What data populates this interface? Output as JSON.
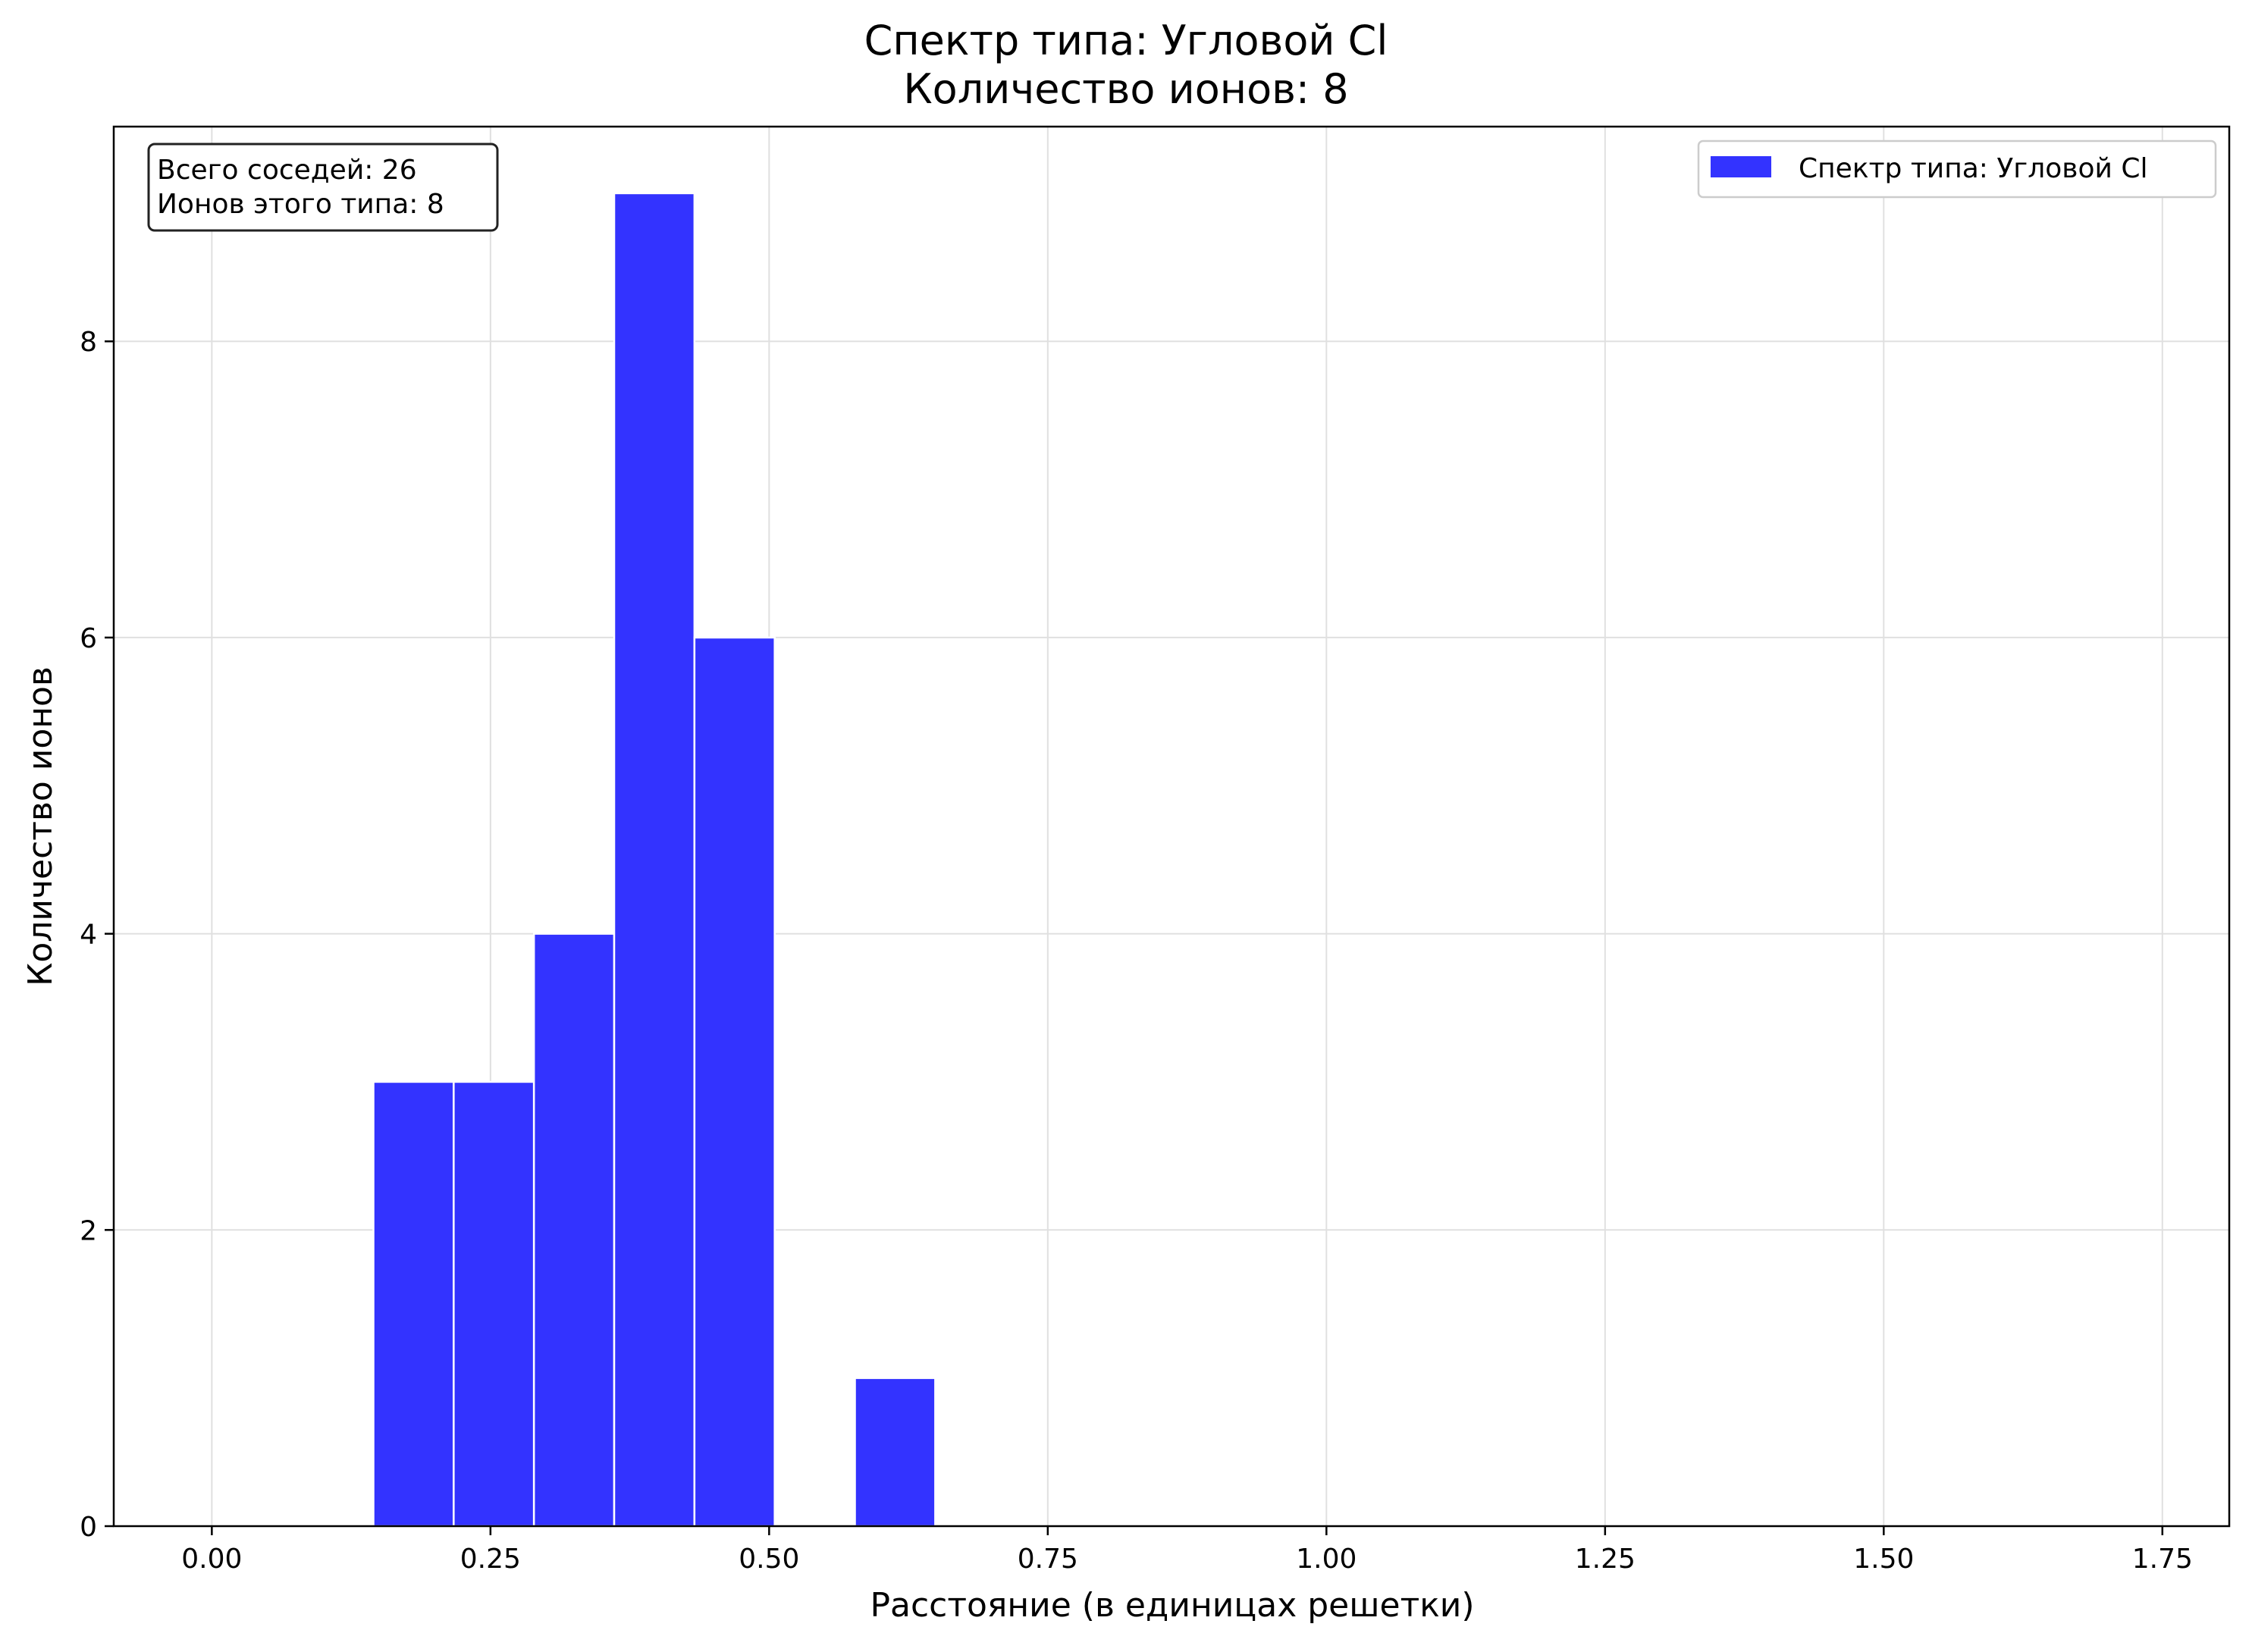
{
  "chart_data": {
    "type": "bar",
    "title": "Спектр типа: Угловой Cl",
    "subtitle": "Количество ионов: 8",
    "xlabel": "Расстояние (в единицах решетки)",
    "ylabel": "Количество ионов",
    "xlim": [
      -0.088,
      1.81
    ],
    "ylim": [
      0,
      9.45
    ],
    "x_ticks": [
      "0.00",
      "0.25",
      "0.50",
      "0.75",
      "1.00",
      "1.25",
      "1.50",
      "1.75"
    ],
    "x_tick_values": [
      0,
      0.25,
      0.5,
      0.75,
      1.0,
      1.25,
      1.5,
      1.75
    ],
    "y_ticks": [
      "0",
      "2",
      "4",
      "6",
      "8"
    ],
    "y_tick_values": [
      0,
      2,
      4,
      6,
      8
    ],
    "grid": true,
    "bins": [
      {
        "start": 0.145,
        "end": 0.217,
        "count": 3
      },
      {
        "start": 0.217,
        "end": 0.289,
        "count": 3
      },
      {
        "start": 0.289,
        "end": 0.361,
        "count": 4
      },
      {
        "start": 0.361,
        "end": 0.433,
        "count": 9
      },
      {
        "start": 0.433,
        "end": 0.505,
        "count": 6
      },
      {
        "start": 0.577,
        "end": 0.649,
        "count": 1
      }
    ],
    "bar_color": "#3333ff",
    "legend": {
      "label": "Спектр типа: Угловой Cl",
      "position": "top-right"
    },
    "annotation": {
      "line1": "Всего соседей: 26",
      "line2": "Ионов этого типа: 8",
      "position": "top-left"
    }
  }
}
